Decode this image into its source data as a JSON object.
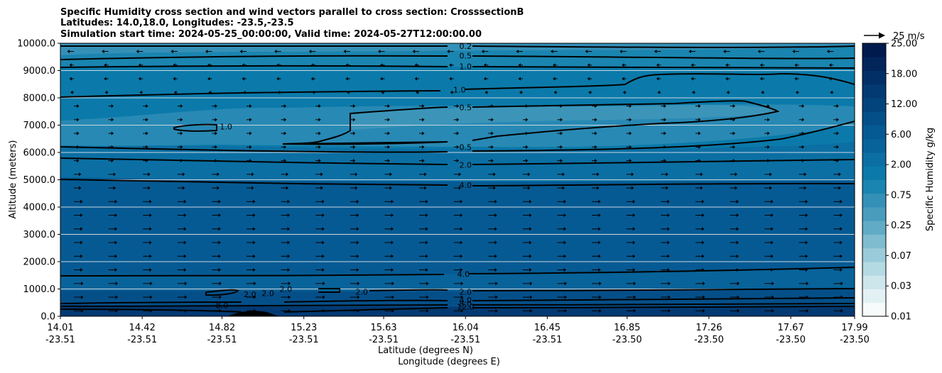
{
  "title": {
    "line1": "Specific Humidity cross section and wind vectors parallel to cross section: CrosssectionB",
    "line2": "Latitudes: 14.0,18.0, Longitudes: -23.5,-23.5",
    "line3": "Simulation start time: 2024-05-25_00:00:00, Valid time: 2024-05-27T12:00:00.00"
  },
  "chart_data": {
    "type": "heatmap",
    "description_fields": "filled contour of specific humidity vs altitude with wind vectors and contour lines",
    "ylabel": "Altitude (meters)",
    "xlabel_lat": "Latitude (degrees N)",
    "xlabel_lon": "Longitude (degrees E)",
    "ylim": [
      0,
      10000
    ],
    "y_ticks": [
      "0.0",
      "1000.0",
      "2000.0",
      "3000.0",
      "4000.0",
      "5000.0",
      "6000.0",
      "7000.0",
      "8000.0",
      "9000.0",
      "10000.0"
    ],
    "x_ticks": [
      {
        "lat": "14.01",
        "lon": "-23.51"
      },
      {
        "lat": "14.42",
        "lon": "-23.51"
      },
      {
        "lat": "14.82",
        "lon": "-23.51"
      },
      {
        "lat": "15.23",
        "lon": "-23.51"
      },
      {
        "lat": "15.63",
        "lon": "-23.51"
      },
      {
        "lat": "16.04",
        "lon": "-23.51"
      },
      {
        "lat": "16.45",
        "lon": "-23.51"
      },
      {
        "lat": "16.85",
        "lon": "-23.50"
      },
      {
        "lat": "17.26",
        "lon": "-23.50"
      },
      {
        "lat": "17.67",
        "lon": "-23.50"
      },
      {
        "lat": "17.99",
        "lon": "-23.50"
      }
    ],
    "grid": "horizontal",
    "colorbar": {
      "label": "Specific Humidity g/kg",
      "tick_labels": [
        "0.01",
        "0.03",
        "0.07",
        "0.25",
        "0.75",
        "2.00",
        "6.00",
        "12.00",
        "18.00",
        "25.00"
      ],
      "colors": [
        "#f7fbfc",
        "#e3f1f4",
        "#cde6ec",
        "#b4dae4",
        "#9acbda",
        "#7fbcd0",
        "#62abc6",
        "#4a9cbd",
        "#3590b8",
        "#1a85b0",
        "#0b7aaa",
        "#0b6fa3",
        "#08639a",
        "#065a93",
        "#054f89",
        "#04447d",
        "#033a72",
        "#023066",
        "#02255a",
        "#011a4e"
      ]
    },
    "quiver_key": {
      "label": "25 m/s",
      "value": 25
    },
    "contour_labels": [
      {
        "text": "0.2",
        "x": 16.04,
        "y": 9900
      },
      {
        "text": "0.5",
        "x": 16.04,
        "y": 9550
      },
      {
        "text": "1.0",
        "x": 16.04,
        "y": 9150
      },
      {
        "text": "1.0",
        "x": 16.01,
        "y": 8300
      },
      {
        "text": "0.5",
        "x": 16.04,
        "y": 7650
      },
      {
        "text": "0.5",
        "x": 16.04,
        "y": 6200
      },
      {
        "text": "2.0",
        "x": 16.04,
        "y": 5550
      },
      {
        "text": "4.0",
        "x": 16.04,
        "y": 4800
      },
      {
        "text": "1.0",
        "x": 14.84,
        "y": 6950
      },
      {
        "text": "4.0",
        "x": 16.03,
        "y": 1550
      },
      {
        "text": "2.0",
        "x": 16.04,
        "y": 900
      },
      {
        "text": "4.0",
        "x": 16.04,
        "y": 600
      },
      {
        "text": "8.0",
        "x": 16.04,
        "y": 450
      },
      {
        "text": "12.0",
        "x": 16.04,
        "y": 350
      },
      {
        "text": "8.0",
        "x": 14.82,
        "y": 400
      },
      {
        "text": "2.0",
        "x": 14.96,
        "y": 800
      },
      {
        "text": "2.0",
        "x": 15.05,
        "y": 850
      },
      {
        "text": "2.0",
        "x": 15.14,
        "y": 1000
      },
      {
        "text": "2.0",
        "x": 15.52,
        "y": 900
      }
    ]
  }
}
